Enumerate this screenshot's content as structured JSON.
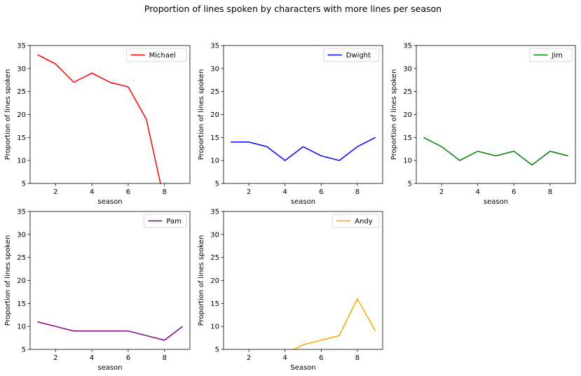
{
  "figure": {
    "title": "Proportion of lines spoken by characters with more lines per season"
  },
  "chart_data": [
    {
      "type": "line",
      "xlabel": "season",
      "ylabel": "Proportion of lines spoken",
      "xlim": [
        0.6,
        9.4
      ],
      "ylim": [
        5,
        35
      ],
      "xticks": [
        2,
        4,
        6,
        8
      ],
      "yticks": [
        5,
        10,
        15,
        20,
        25,
        30,
        35
      ],
      "legend": "top-right",
      "series": [
        {
          "name": "Michael",
          "color": "#ff0000",
          "x": [
            1,
            2,
            3,
            4,
            5,
            6,
            7,
            8
          ],
          "y": [
            33,
            31,
            27,
            29,
            27,
            26,
            19,
            1
          ]
        }
      ]
    },
    {
      "type": "line",
      "xlabel": "season",
      "ylabel": "Proportion of lines spoken",
      "xlim": [
        0.6,
        9.4
      ],
      "ylim": [
        5,
        35
      ],
      "xticks": [
        2,
        4,
        6,
        8
      ],
      "yticks": [
        5,
        10,
        15,
        20,
        25,
        30,
        35
      ],
      "legend": "top-right",
      "series": [
        {
          "name": "Dwight",
          "color": "#0000ff",
          "x": [
            1,
            2,
            3,
            4,
            5,
            6,
            7,
            8,
            9
          ],
          "y": [
            14,
            14,
            13,
            10,
            13,
            11,
            10,
            13,
            15
          ]
        }
      ]
    },
    {
      "type": "line",
      "xlabel": "season",
      "ylabel": "Proportion of lines spoken",
      "xlim": [
        0.6,
        9.4
      ],
      "ylim": [
        5,
        35
      ],
      "xticks": [
        2,
        4,
        6,
        8
      ],
      "yticks": [
        5,
        10,
        15,
        20,
        25,
        30,
        35
      ],
      "legend": "top-right",
      "series": [
        {
          "name": "Jim",
          "color": "#008000",
          "x": [
            1,
            2,
            3,
            4,
            5,
            6,
            7,
            8,
            9
          ],
          "y": [
            15,
            13,
            10,
            12,
            11,
            12,
            9,
            12,
            11
          ]
        }
      ]
    },
    {
      "type": "line",
      "xlabel": "season",
      "ylabel": "Proportion of lines spoken",
      "xlim": [
        0.6,
        9.4
      ],
      "ylim": [
        5,
        35
      ],
      "xticks": [
        2,
        4,
        6,
        8
      ],
      "yticks": [
        5,
        10,
        15,
        20,
        25,
        30,
        35
      ],
      "legend": "top-right",
      "series": [
        {
          "name": "Pam",
          "color": "#800080",
          "x": [
            1,
            2,
            3,
            4,
            5,
            6,
            7,
            8,
            9
          ],
          "y": [
            11,
            10,
            9,
            9,
            9,
            9,
            8,
            7,
            10
          ]
        }
      ]
    },
    {
      "type": "line",
      "xlabel": "Season",
      "ylabel": "Proportion of lines spoken",
      "xlim": [
        0.6,
        9.4
      ],
      "ylim": [
        5,
        35
      ],
      "xticks": [
        2,
        4,
        6,
        8
      ],
      "yticks": [
        5,
        10,
        15,
        20,
        25,
        30,
        35
      ],
      "legend": "top-right",
      "series": [
        {
          "name": "Andy",
          "color": "#ffa500",
          "x": [
            3,
            4,
            5,
            6,
            7,
            8,
            9
          ],
          "y": [
            5,
            4,
            6,
            7,
            8,
            16,
            9
          ]
        }
      ]
    }
  ]
}
